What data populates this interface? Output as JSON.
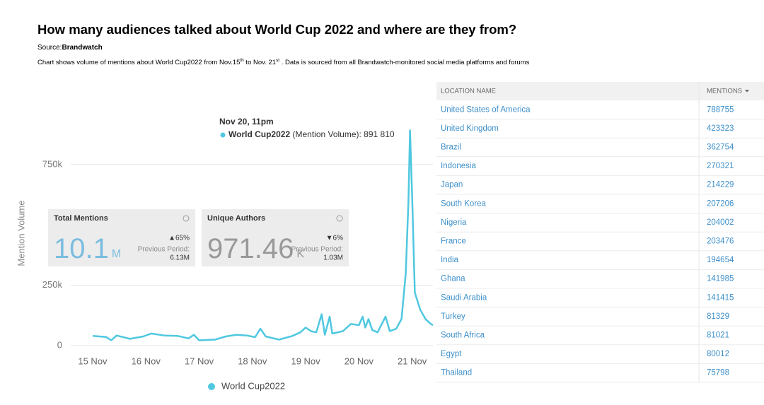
{
  "header": {
    "title": "How many audiences talked about World Cup 2022 and where are they from?",
    "source_label": "Source:",
    "source": "Brandwatch",
    "description": [
      "Chart shows volume of mentions about World Cup2022 from Nov.15",
      "th",
      " to Nov. 21",
      "st",
      " . Data is sourced from all Brandwatch-monitored social media platforms and forums"
    ]
  },
  "chart_data": {
    "type": "line",
    "y_label": "Mention Volume",
    "x": [
      0,
      0.25,
      0.35,
      0.45,
      0.7,
      0.95,
      1.1,
      1.35,
      1.6,
      1.8,
      1.9,
      2.0,
      2.3,
      2.5,
      2.7,
      2.9,
      3.05,
      3.15,
      3.25,
      3.5,
      3.75,
      3.9,
      4.0,
      4.1,
      4.2,
      4.3,
      4.36,
      4.45,
      4.5,
      4.7,
      4.85,
      5.0,
      5.07,
      5.12,
      5.18,
      5.25,
      5.35,
      5.5,
      5.58,
      5.7,
      5.8,
      5.88,
      5.93,
      5.96,
      6.0,
      6.05,
      6.15,
      6.25,
      6.35,
      6.39
    ],
    "series": [
      {
        "name": "World Cup2022",
        "color": "#4fc8e0",
        "values": [
          40000,
          36000,
          22000,
          42000,
          28000,
          38000,
          50000,
          42000,
          40000,
          30000,
          45000,
          22000,
          25000,
          38000,
          45000,
          42000,
          35000,
          70000,
          38000,
          25000,
          40000,
          55000,
          75000,
          60000,
          55000,
          130000,
          45000,
          120000,
          50000,
          60000,
          90000,
          85000,
          120000,
          75000,
          110000,
          65000,
          55000,
          120000,
          60000,
          70000,
          110000,
          300000,
          600000,
          891810,
          620000,
          220000,
          150000,
          110000,
          90000,
          85000
        ]
      }
    ],
    "xlim": [
      -0.345,
      6.39
    ],
    "xticks": [
      {
        "value": 0,
        "label": "15 Nov"
      },
      {
        "value": 1,
        "label": "16 Nov"
      },
      {
        "value": 2,
        "label": "17 Nov"
      },
      {
        "value": 3,
        "label": "18 Nov"
      },
      {
        "value": 4,
        "label": "19 Nov"
      },
      {
        "value": 5,
        "label": "20 Nov"
      },
      {
        "value": 6,
        "label": "21 Nov"
      }
    ],
    "ylim": [
      0,
      900000
    ],
    "yticks": [
      0,
      {
        "value": 250000,
        "label": "250k"
      },
      {
        "value": 750000,
        "label": "750k"
      }
    ],
    "grid": true,
    "tooltip": {
      "title": "Nov 20, 11pm",
      "text": " (Mention Volume): 891 810"
    }
  },
  "cards": [
    {
      "title": "Total Mentions",
      "value": "10.1",
      "unit": "M",
      "change": "▲65%",
      "period_label": "Previous Period:",
      "period_value": "6.13M"
    },
    {
      "title": "Unique Authors",
      "value": "971.46",
      "unit": "K",
      "change": "▼6%",
      "period_label": "Previous Period:",
      "period_value": "1.03M"
    }
  ],
  "table": {
    "headers": [
      "LOCATION NAME",
      "MENTIONS"
    ],
    "rows": [
      [
        "United States of America",
        788755
      ],
      [
        "United Kingdom",
        423323
      ],
      [
        "Brazil",
        362754
      ],
      [
        "Indonesia",
        270321
      ],
      [
        "Japan",
        214229
      ],
      [
        "South Korea",
        207206
      ],
      [
        "Nigeria",
        204002
      ],
      [
        "France",
        203476
      ],
      [
        "India",
        194654
      ],
      [
        "Ghana",
        141985
      ],
      [
        "Saudi Arabia",
        141415
      ],
      [
        "Turkey",
        81329
      ],
      [
        "South Africa",
        81021
      ],
      [
        "Egypt",
        80012
      ],
      [
        "Thailand",
        75798
      ]
    ]
  }
}
